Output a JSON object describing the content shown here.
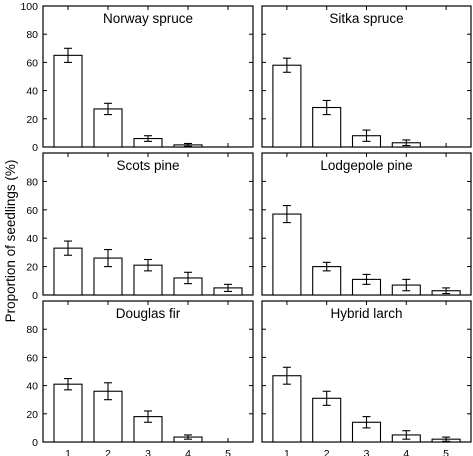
{
  "chart_data": {
    "type": "bar",
    "ylabel": "Proportion of seedlings (%)",
    "xlabel": "",
    "categories": [
      "1",
      "2",
      "3",
      "4",
      "5"
    ],
    "ylim": [
      0,
      100
    ],
    "panels": [
      {
        "title": "Norway spruce",
        "yticks": [
          0,
          20,
          40,
          60,
          80,
          100
        ],
        "values": [
          65,
          27,
          6,
          1.5,
          0
        ],
        "errors": [
          5,
          4,
          2,
          1,
          0
        ]
      },
      {
        "title": "Sitka spruce",
        "yticks": [
          0,
          20,
          40,
          60,
          80,
          100
        ],
        "values": [
          58,
          28,
          8,
          3,
          0
        ],
        "errors": [
          5,
          5,
          4,
          2,
          0
        ]
      },
      {
        "title": "Scots pine",
        "yticks": [
          0,
          20,
          40,
          60,
          80
        ],
        "values": [
          33,
          26,
          21,
          12,
          5
        ],
        "errors": [
          5,
          6,
          4,
          4,
          2.5
        ]
      },
      {
        "title": "Lodgepole pine",
        "yticks": [
          0,
          20,
          40,
          60,
          80
        ],
        "values": [
          57,
          20,
          11,
          7,
          3
        ],
        "errors": [
          6,
          3,
          3.5,
          4,
          2
        ]
      },
      {
        "title": "Douglas fir",
        "yticks": [
          0,
          20,
          40,
          60,
          80
        ],
        "values": [
          41,
          36,
          18,
          3.5,
          0
        ],
        "errors": [
          4,
          6,
          4,
          1.5,
          0
        ]
      },
      {
        "title": "Hybrid larch",
        "yticks": [
          0,
          20,
          40,
          60,
          80
        ],
        "values": [
          47,
          31,
          14,
          5,
          2
        ],
        "errors": [
          6,
          5,
          4,
          3,
          1.5
        ]
      }
    ]
  }
}
